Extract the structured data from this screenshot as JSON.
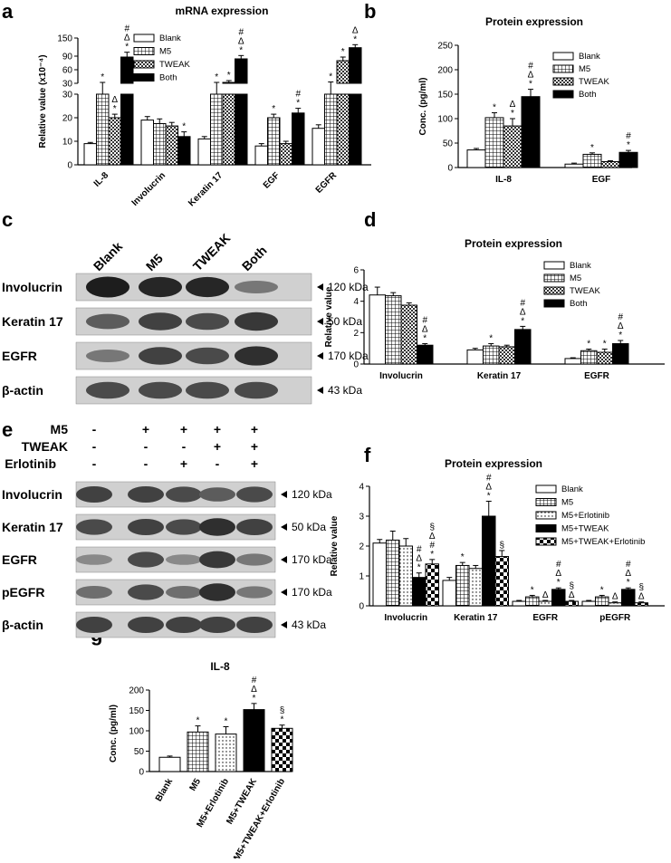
{
  "panel_labels": [
    "a",
    "b",
    "c",
    "d",
    "e",
    "f",
    "g"
  ],
  "colors": {
    "blank": "#ffffff",
    "both": "#000000",
    "axis": "#000000",
    "blot_bg": "#d0d0d0",
    "band": "#2a2a2a"
  },
  "blot_c": {
    "lanes": [
      "Blank",
      "M5",
      "TWEAK",
      "Both"
    ],
    "rows": [
      {
        "label": "Involucrin",
        "kda": "120 kDa",
        "intensity": [
          0.95,
          0.9,
          0.9,
          0.45
        ]
      },
      {
        "label": "Keratin 17",
        "kda": "50 kDa",
        "intensity": [
          0.6,
          0.75,
          0.7,
          0.8
        ]
      },
      {
        "label": "EGFR",
        "kda": "170 kDa",
        "intensity": [
          0.45,
          0.75,
          0.7,
          0.85
        ]
      },
      {
        "label": "β-actin",
        "kda": "43 kDa",
        "intensity": [
          0.7,
          0.7,
          0.7,
          0.7
        ]
      }
    ]
  },
  "blot_e": {
    "conditions": [
      {
        "label": "M5",
        "values": [
          "-",
          "+",
          "+",
          "+",
          "+"
        ]
      },
      {
        "label": "TWEAK",
        "values": [
          "-",
          "-",
          "-",
          "+",
          "+"
        ]
      },
      {
        "label": "Erlotinib",
        "values": [
          "-",
          "-",
          "+",
          "-",
          "+"
        ]
      }
    ],
    "rows": [
      {
        "label": "Involucrin",
        "kda": "120 kDa",
        "intensity": [
          0.75,
          0.75,
          0.7,
          0.6,
          0.7
        ]
      },
      {
        "label": "Keratin 17",
        "kda": "50 kDa",
        "intensity": [
          0.7,
          0.75,
          0.7,
          0.85,
          0.75
        ]
      },
      {
        "label": "EGFR",
        "kda": "170 kDa",
        "intensity": [
          0.35,
          0.7,
          0.35,
          0.8,
          0.45
        ]
      },
      {
        "label": "pEGFR",
        "kda": "170 kDa",
        "intensity": [
          0.5,
          0.7,
          0.5,
          0.85,
          0.45
        ]
      },
      {
        "label": "β-actin",
        "kda": "43 kDa",
        "intensity": [
          0.75,
          0.75,
          0.75,
          0.75,
          0.75
        ]
      }
    ]
  },
  "chart_data": [
    {
      "panel": "a",
      "type": "bar",
      "title": "mRNA expression",
      "ylabel": "Relative value (x10⁻⁴)",
      "categories": [
        "IL-8",
        "Involucrin",
        "Keratin 17",
        "EGF",
        "EGFR"
      ],
      "y_ticks_lower": [
        "0",
        "10",
        "20",
        "30"
      ],
      "y_ticks_upper": [
        "30",
        "60",
        "90",
        "150"
      ],
      "axis_break": "y axis broken between 30 (lower segment) and 30 (upper segment)",
      "series": [
        {
          "name": "Blank",
          "pattern": "open",
          "values": [
            9,
            19,
            11,
            8,
            15.5
          ],
          "errors": [
            0.5,
            1.5,
            1,
            1,
            1.5
          ],
          "marks": [
            "",
            "",
            "",
            "",
            ""
          ]
        },
        {
          "name": "M5",
          "pattern": "grid",
          "values": [
            30,
            17.5,
            30,
            20,
            30
          ],
          "errors": [
            2,
            2,
            2,
            1.5,
            3
          ],
          "marks": [
            "*",
            "",
            "*",
            "*",
            "*"
          ]
        },
        {
          "name": "TWEAK",
          "pattern": "checker",
          "values": [
            20,
            16.5,
            32,
            9,
            80
          ],
          "errors": [
            1.5,
            1.5,
            4,
            1,
            8
          ],
          "marks": [
            "* Δ",
            "",
            "*",
            "",
            "*"
          ]
        },
        {
          "name": "Both",
          "pattern": "solid",
          "values": [
            88,
            12,
            84,
            22,
            118
          ],
          "errors": [
            15,
            2,
            8,
            2,
            10
          ],
          "marks": [
            "* Δ #",
            "*",
            "* Δ #",
            "* #",
            "* Δ"
          ]
        }
      ]
    },
    {
      "panel": "b",
      "type": "bar",
      "title": "Protein expression",
      "ylabel": "Conc. (pg/ml)",
      "categories": [
        "IL-8",
        "EGF"
      ],
      "ylim": [
        0,
        250
      ],
      "y_ticks": [
        "0",
        "50",
        "100",
        "150",
        "200",
        "250"
      ],
      "series": [
        {
          "name": "Blank",
          "pattern": "open",
          "values": [
            36,
            7
          ],
          "errors": [
            3,
            2
          ],
          "marks": [
            "",
            ""
          ]
        },
        {
          "name": "M5",
          "pattern": "grid",
          "values": [
            102,
            27
          ],
          "errors": [
            10,
            3
          ],
          "marks": [
            "*",
            "*"
          ]
        },
        {
          "name": "TWEAK",
          "pattern": "checker",
          "values": [
            85,
            12
          ],
          "errors": [
            15,
            2
          ],
          "marks": [
            "* Δ",
            ""
          ]
        },
        {
          "name": "Both",
          "pattern": "solid",
          "values": [
            145,
            31
          ],
          "errors": [
            15,
            4
          ],
          "marks": [
            "* Δ #",
            "* #"
          ]
        }
      ]
    },
    {
      "panel": "d",
      "type": "bar",
      "title": "Protein expression",
      "ylabel": "Relative value",
      "categories": [
        "Involucrin",
        "Keratin 17",
        "EGFR"
      ],
      "ylim": [
        0,
        6
      ],
      "y_ticks": [
        "0",
        "2",
        "4",
        "6"
      ],
      "series": [
        {
          "name": "Blank",
          "pattern": "open",
          "values": [
            4.4,
            0.9,
            0.35
          ],
          "errors": [
            0.5,
            0.1,
            0.05
          ],
          "marks": [
            "",
            "",
            ""
          ]
        },
        {
          "name": "M5",
          "pattern": "grid",
          "values": [
            4.35,
            1.15,
            0.85
          ],
          "errors": [
            0.2,
            0.15,
            0.1
          ],
          "marks": [
            "",
            "*",
            "*"
          ]
        },
        {
          "name": "TWEAK",
          "pattern": "checker",
          "values": [
            3.75,
            1.1,
            0.75
          ],
          "errors": [
            0.15,
            0.1,
            0.2
          ],
          "marks": [
            "",
            "",
            "*"
          ]
        },
        {
          "name": "Both",
          "pattern": "solid",
          "values": [
            1.2,
            2.2,
            1.3
          ],
          "errors": [
            0.1,
            0.2,
            0.2
          ],
          "marks": [
            "* Δ #",
            "* Δ #",
            "* Δ #"
          ]
        }
      ]
    },
    {
      "panel": "f",
      "type": "bar",
      "title": "Protein expression",
      "ylabel": "Relative value",
      "categories": [
        "Involucrin",
        "Keratin 17",
        "EGFR",
        "pEGFR"
      ],
      "ylim": [
        0,
        4
      ],
      "y_ticks": [
        "0",
        "1",
        "2",
        "3",
        "4"
      ],
      "series": [
        {
          "name": "Blank",
          "pattern": "open",
          "values": [
            2.1,
            0.85,
            0.15,
            0.15
          ],
          "errors": [
            0.12,
            0.1,
            0.03,
            0.03
          ],
          "marks": [
            "",
            "",
            "",
            ""
          ]
        },
        {
          "name": "M5",
          "pattern": "grid",
          "values": [
            2.2,
            1.35,
            0.3,
            0.3
          ],
          "errors": [
            0.3,
            0.1,
            0.05,
            0.05
          ],
          "marks": [
            "",
            "*",
            "*",
            "*"
          ]
        },
        {
          "name": "M5+Erlotinib",
          "pattern": "dots",
          "values": [
            2.0,
            1.25,
            0.15,
            0.1
          ],
          "errors": [
            0.25,
            0.1,
            0.03,
            0.03
          ],
          "marks": [
            "",
            "",
            "Δ",
            "Δ"
          ]
        },
        {
          "name": "M5+TWEAK",
          "pattern": "solid",
          "values": [
            0.95,
            3.0,
            0.55,
            0.55
          ],
          "errors": [
            0.15,
            0.5,
            0.05,
            0.05
          ],
          "marks": [
            "* Δ #",
            "* Δ #",
            "* Δ #",
            "* Δ #"
          ]
        },
        {
          "name": "M5+TWEAK+Erlotinib",
          "pattern": "checker",
          "values": [
            1.4,
            1.65,
            0.15,
            0.1
          ],
          "errors": [
            0.15,
            0.2,
            0.03,
            0.03
          ],
          "marks": [
            "* # Δ §",
            "§",
            "Δ §",
            "Δ §"
          ]
        }
      ]
    },
    {
      "panel": "g",
      "type": "bar",
      "title": "IL-8",
      "ylabel": "Conc. (pg/ml)",
      "categories": [
        "Blank",
        "M5",
        "M5+Erlotinib",
        "M5+TWEAK",
        "M5+TWEAK+Erlotinib"
      ],
      "ylim": [
        0,
        200
      ],
      "y_ticks": [
        "0",
        "50",
        "100",
        "150",
        "200"
      ],
      "patterns": [
        "open",
        "grid",
        "dots",
        "solid",
        "checker"
      ],
      "values": [
        35,
        97,
        92,
        152,
        106
      ],
      "errors": [
        3,
        15,
        18,
        15,
        8
      ],
      "marks": [
        "",
        "*",
        "*",
        "* Δ #",
        "* §"
      ]
    }
  ]
}
